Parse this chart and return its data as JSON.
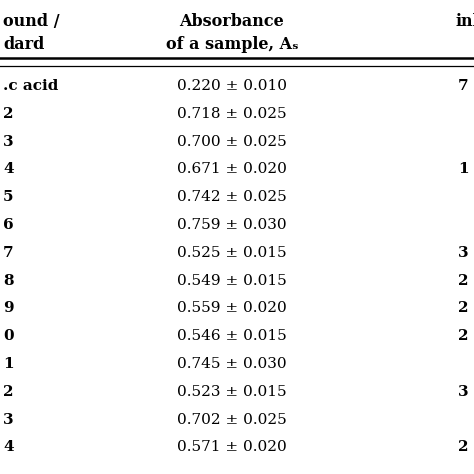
{
  "col1_header_line1": "ound /",
  "col1_header_line2": "dard",
  "col2_header_line1": "Absorbance",
  "col2_header_line2": "of a sample, Aₛ",
  "col3_header": "inhi",
  "col1_labels": [
    ".c acid",
    "2",
    "3",
    "4",
    "5",
    "6",
    "7",
    "8",
    "9",
    "0",
    "1",
    "2",
    "3",
    "4"
  ],
  "col2_values": [
    "0.220 ± 0.010",
    "0.718 ± 0.025",
    "0.700 ± 0.025",
    "0.671 ± 0.020",
    "0.742 ± 0.025",
    "0.759 ± 0.030",
    "0.525 ± 0.015",
    "0.549 ± 0.015",
    "0.559 ± 0.020",
    "0.546 ± 0.015",
    "0.745 ± 0.030",
    "0.523 ± 0.015",
    "0.702 ± 0.025",
    "0.571 ± 0.020"
  ],
  "col3_values": [
    "7",
    "",
    "",
    "1",
    "",
    "",
    "3",
    "2",
    "2",
    "2",
    "",
    "3",
    "",
    "2"
  ],
  "bg_color": "#ffffff",
  "text_color": "#000000",
  "header_fontsize": 11.5,
  "data_fontsize": 11.0
}
